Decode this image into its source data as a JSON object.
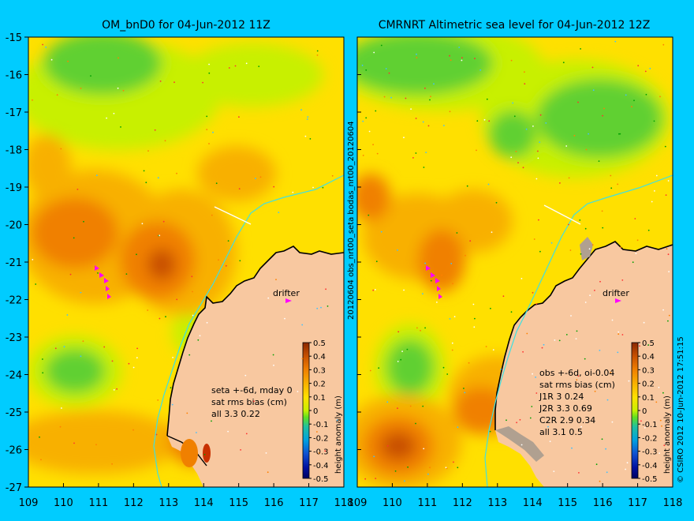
{
  "left_panel": {
    "title": "OM_bnD0 for 04-Jun-2012 11Z",
    "drifter_label": "drifter",
    "stats_lines": [
      "seta +-6d, mday 0",
      "sat rms bias (cm)",
      "all 3.3 0.22"
    ]
  },
  "right_panel": {
    "title": "CMRNRT Altimetric sea level  for 04-Jun-2012 12Z",
    "drifter_label": "drifter",
    "stats_lines": [
      "obs +-6d, oi-0.04",
      "sat rms bias (cm)",
      "J1R   3 0.24",
      "J2R   3.3 0.69",
      "C2R   2.9 0.34",
      "all 3.1 0.5"
    ]
  },
  "middle_vertical_label": "20120604 obs_nrt00_seta          bodas_nrt00_20120604",
  "right_vertical_label": "© CSIRO 2012  10-Jun-2012 17:51:15",
  "colorbar": {
    "ticks": [
      "0.5",
      "0.4",
      "0.3",
      "0.2",
      "0.1",
      "0",
      "-0.1",
      "-0.2",
      "-0.3",
      "-0.4",
      "-0.5"
    ],
    "label": "height anomaly (m)"
  },
  "axes": {
    "y_ticks": [
      "-15",
      "-16",
      "-17",
      "-18",
      "-19",
      "-20",
      "-21",
      "-22",
      "-23",
      "-24",
      "-25",
      "-26",
      "-27"
    ],
    "x_ticks": [
      "109",
      "110",
      "111",
      "112",
      "113",
      "114",
      "115",
      "116",
      "117",
      "118"
    ],
    "lat_range": [
      -27,
      -15
    ],
    "lon_range": [
      109,
      118
    ]
  },
  "colors": {
    "background": "#00ccff",
    "land": "#f8c8a0",
    "coast_cyan": "#40e0e0",
    "drifter": "#ff00ff",
    "base": "#ffe000"
  }
}
